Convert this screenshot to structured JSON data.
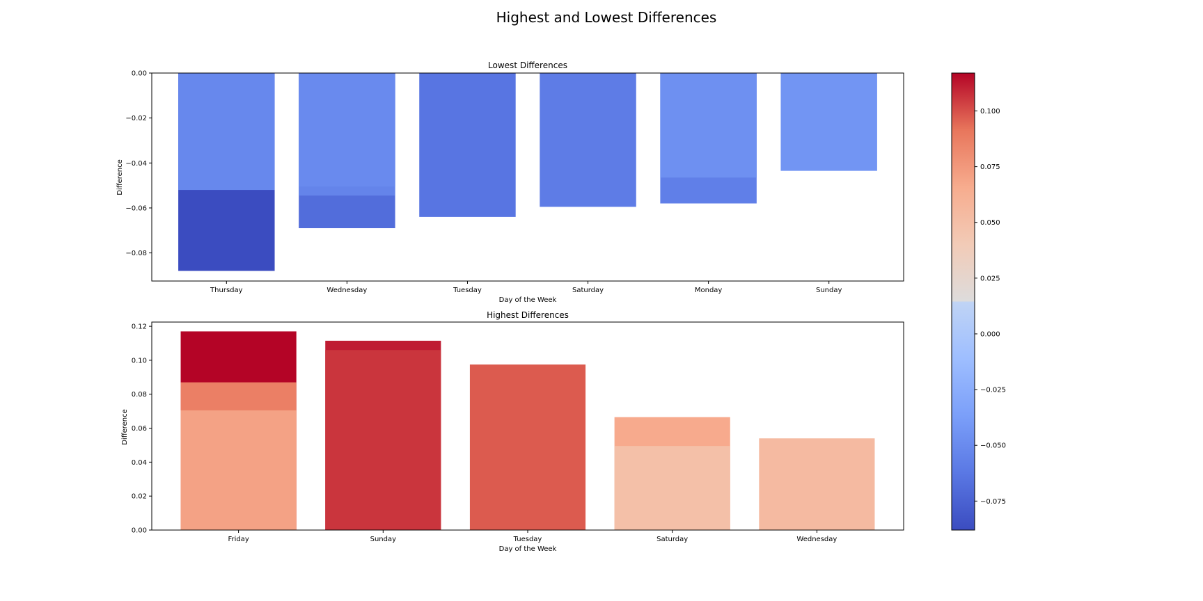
{
  "figure": {
    "title": "Highest and Lowest Differences"
  },
  "chart_data": [
    {
      "type": "bar",
      "title": "Lowest Differences",
      "xlabel": "Day of the Week",
      "ylabel": "Difference",
      "ylim": [
        -0.0925,
        0.0
      ],
      "yticks": [
        "0.00",
        "−0.02",
        "−0.04",
        "−0.06",
        "−0.08"
      ],
      "ytick_values": [
        0.0,
        -0.02,
        -0.04,
        -0.06,
        -0.08
      ],
      "categories": [
        "Thursday",
        "Wednesday",
        "Tuesday",
        "Saturday",
        "Monday",
        "Sunday"
      ],
      "bars": [
        [
          -0.088,
          -0.052
        ],
        [
          -0.069,
          -0.0545,
          -0.0505
        ],
        [
          -0.064
        ],
        [
          -0.0595
        ],
        [
          -0.058,
          -0.0465
        ],
        [
          -0.0435
        ]
      ],
      "bar_width": 0.8,
      "grid": false
    },
    {
      "type": "bar",
      "title": "Highest Differences",
      "xlabel": "Day of the Week",
      "ylabel": "Difference",
      "ylim": [
        0.0,
        0.1225
      ],
      "yticks": [
        "0.00",
        "0.02",
        "0.04",
        "0.06",
        "0.08",
        "0.10",
        "0.12"
      ],
      "ytick_values": [
        0.0,
        0.02,
        0.04,
        0.06,
        0.08,
        0.1,
        0.12
      ],
      "categories": [
        "Friday",
        "Sunday",
        "Tuesday",
        "Saturday",
        "Wednesday"
      ],
      "bars": [
        [
          0.117,
          0.087,
          0.0705
        ],
        [
          0.1115,
          0.106
        ],
        [
          0.0975
        ],
        [
          0.0665,
          0.0495
        ],
        [
          0.054
        ]
      ],
      "bar_width": 0.8,
      "grid": false
    }
  ],
  "colorbar": {
    "colormap": "coolwarm",
    "range": [
      -0.088,
      0.117
    ],
    "ticks": [
      "0.100",
      "0.075",
      "0.050",
      "0.025",
      "0.000",
      "−0.025",
      "−0.050",
      "−0.075"
    ],
    "tick_values": [
      0.1,
      0.075,
      0.05,
      0.025,
      0.0,
      -0.025,
      -0.05,
      -0.075
    ],
    "colors": {
      "low": "#3b4cc0",
      "mid": "#dddddd",
      "high": "#b40426"
    }
  }
}
